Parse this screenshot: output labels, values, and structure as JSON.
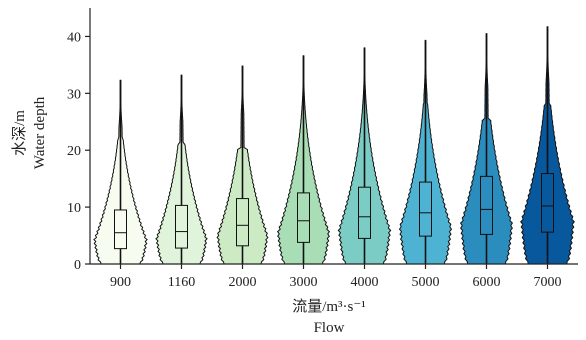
{
  "chart_data": {
    "type": "violin",
    "categories": [
      "900",
      "1160",
      "2000",
      "3000",
      "4000",
      "5000",
      "6000",
      "7000"
    ],
    "xlabel": "流量/m³·s⁻¹",
    "xlabel_en": "Flow",
    "ylabel": "水深/m",
    "ylabel_en": "Water depth",
    "ylim": [
      0,
      45
    ],
    "yticks": [
      0,
      10,
      20,
      30,
      40
    ],
    "grid": false,
    "colors": [
      "#f7fcf0",
      "#e0f3db",
      "#ccebc5",
      "#a8ddb5",
      "#7bccc4",
      "#4eb3d3",
      "#2b8cbe",
      "#08589e"
    ],
    "series": [
      {
        "category": "900",
        "min": 0,
        "max": 32.3,
        "q1": 2.7,
        "median": 5.5,
        "q3": 9.5,
        "whisker_high": 26,
        "mode_depth": 4.2,
        "max_half_width": 0.88
      },
      {
        "category": "1160",
        "min": 0,
        "max": 33.2,
        "q1": 2.8,
        "median": 5.7,
        "q3": 10.3,
        "whisker_high": 25,
        "mode_depth": 4.5,
        "max_half_width": 0.84
      },
      {
        "category": "2000",
        "min": 0,
        "max": 34.8,
        "q1": 3.2,
        "median": 6.8,
        "q3": 11.5,
        "whisker_high": 24,
        "mode_depth": 5.0,
        "max_half_width": 0.84
      },
      {
        "category": "3000",
        "min": 0,
        "max": 36.6,
        "q1": 3.8,
        "median": 7.6,
        "q3": 12.5,
        "whisker_high": 32,
        "mode_depth": 5.5,
        "max_half_width": 0.86
      },
      {
        "category": "4000",
        "min": 0,
        "max": 38.0,
        "q1": 4.5,
        "median": 8.3,
        "q3": 13.5,
        "whisker_high": 34,
        "mode_depth": 6.0,
        "max_half_width": 0.86
      },
      {
        "category": "5000",
        "min": 0,
        "max": 39.3,
        "q1": 4.9,
        "median": 9.0,
        "q3": 14.4,
        "whisker_high": 33,
        "mode_depth": 6.5,
        "max_half_width": 0.86
      },
      {
        "category": "6000",
        "min": 0,
        "max": 40.5,
        "q1": 5.2,
        "median": 9.6,
        "q3": 15.4,
        "whisker_high": 30,
        "mode_depth": 7.0,
        "max_half_width": 0.86
      },
      {
        "category": "7000",
        "min": 0,
        "max": 41.7,
        "q1": 5.6,
        "median": 10.2,
        "q3": 15.9,
        "whisker_high": 33,
        "mode_depth": 7.5,
        "max_half_width": 0.88
      }
    ]
  }
}
